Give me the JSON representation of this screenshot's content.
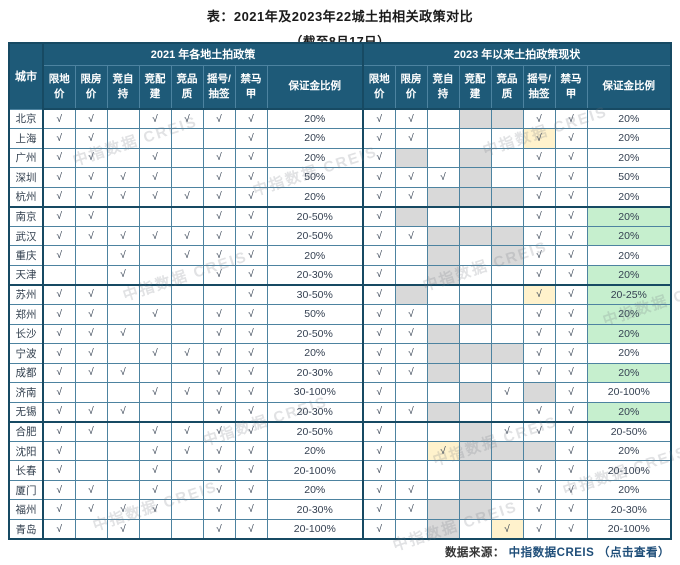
{
  "title": "表：2021年及2023年22城土拍相关政策对比",
  "subtitle": "（截至8月17日）",
  "watermark_text": "中指数据 CREIS",
  "colors": {
    "header_bg": "#1E5A78",
    "cancelled_gray": "#D9D9D9",
    "new_policy_yellow": "#FFF2CC",
    "lowered_deposit_green": "#C6EFCE",
    "grid_line": "#4D83A0",
    "frame": "#174A63",
    "link_blue": "#1F4E79"
  },
  "table": {
    "city_header": "城市",
    "groups": [
      {
        "label": "2021 年各地土拍政策"
      },
      {
        "label": "2023 年以来土拍政策现状"
      }
    ],
    "policy_columns": [
      {
        "line1": "限地",
        "line2": "价"
      },
      {
        "line1": "限房",
        "line2": "价"
      },
      {
        "line1": "竞自",
        "line2": "持"
      },
      {
        "line1": "竞配",
        "line2": "建"
      },
      {
        "line1": "竞品",
        "line2": "质"
      },
      {
        "line1": "摇号/",
        "line2": "抽签"
      },
      {
        "line1": "禁马",
        "line2": "甲"
      }
    ],
    "deposit_header": "保证金比例",
    "check_glyph": "√",
    "cell_legend": {
      "c": "policy-in-place",
      "g": "policy-cancelled",
      "y": "policy-newly-added",
      "": "no-policy"
    },
    "rows": [
      {
        "city": "北京",
        "p2021": [
          "c",
          "c",
          "",
          "c",
          "c",
          "c",
          "c"
        ],
        "d2021": "20%",
        "p2023": [
          "c",
          "c",
          "",
          "g",
          "g",
          "c",
          "c"
        ],
        "d2023": "20%",
        "d2023_green": false
      },
      {
        "city": "上海",
        "p2021": [
          "c",
          "c",
          "",
          "",
          "",
          "",
          "c"
        ],
        "d2021": "20%",
        "p2023": [
          "c",
          "c",
          "",
          "",
          "",
          "y",
          "c"
        ],
        "d2023": "20%",
        "d2023_green": false
      },
      {
        "city": "广州",
        "p2021": [
          "c",
          "c",
          "",
          "c",
          "",
          "c",
          "c"
        ],
        "d2021": "20%",
        "p2023": [
          "c",
          "g",
          "",
          "g",
          "",
          "c",
          "c"
        ],
        "d2023": "20%",
        "d2023_green": false
      },
      {
        "city": "深圳",
        "p2021": [
          "c",
          "c",
          "c",
          "c",
          "",
          "c",
          "c"
        ],
        "d2021": "50%",
        "p2023": [
          "c",
          "c",
          "c",
          "g",
          "",
          "c",
          "c"
        ],
        "d2023": "50%",
        "d2023_green": false
      },
      {
        "city": "杭州",
        "p2021": [
          "c",
          "c",
          "c",
          "c",
          "c",
          "c",
          "c"
        ],
        "d2021": "20%",
        "p2023": [
          "c",
          "c",
          "g",
          "g",
          "g",
          "c",
          "c"
        ],
        "d2023": "20%",
        "d2023_green": false
      },
      {
        "city": "南京",
        "p2021": [
          "c",
          "c",
          "",
          "",
          "",
          "c",
          "c"
        ],
        "d2021": "20-50%",
        "p2023": [
          "c",
          "g",
          "",
          "",
          "",
          "c",
          "c"
        ],
        "d2023": "20%",
        "d2023_green": true
      },
      {
        "city": "武汉",
        "p2021": [
          "c",
          "c",
          "c",
          "c",
          "c",
          "c",
          "c"
        ],
        "d2021": "20-50%",
        "p2023": [
          "c",
          "c",
          "g",
          "g",
          "g",
          "c",
          "c"
        ],
        "d2023": "20%",
        "d2023_green": true
      },
      {
        "city": "重庆",
        "p2021": [
          "c",
          "",
          "c",
          "",
          "c",
          "c",
          "c"
        ],
        "d2021": "20%",
        "p2023": [
          "c",
          "",
          "g",
          "",
          "g",
          "c",
          "c"
        ],
        "d2023": "20%",
        "d2023_green": false
      },
      {
        "city": "天津",
        "p2021": [
          "",
          "",
          "c",
          "",
          "",
          "c",
          "c"
        ],
        "d2021": "20-30%",
        "p2023": [
          "c",
          "",
          "g",
          "",
          "",
          "c",
          "c"
        ],
        "d2023": "20%",
        "d2023_green": true
      },
      {
        "city": "苏州",
        "p2021": [
          "c",
          "c",
          "",
          "",
          "",
          "",
          "c"
        ],
        "d2021": "30-50%",
        "p2023": [
          "c",
          "g",
          "",
          "",
          "",
          "y",
          "c"
        ],
        "d2023": "20-25%",
        "d2023_green": true
      },
      {
        "city": "郑州",
        "p2021": [
          "c",
          "c",
          "",
          "c",
          "",
          "c",
          "c"
        ],
        "d2021": "50%",
        "p2023": [
          "c",
          "c",
          "",
          "g",
          "",
          "c",
          "c"
        ],
        "d2023": "20%",
        "d2023_green": true
      },
      {
        "city": "长沙",
        "p2021": [
          "c",
          "c",
          "c",
          "",
          "",
          "c",
          "c"
        ],
        "d2021": "20-50%",
        "p2023": [
          "c",
          "c",
          "g",
          "",
          "",
          "c",
          "c"
        ],
        "d2023": "20%",
        "d2023_green": true
      },
      {
        "city": "宁波",
        "p2021": [
          "c",
          "c",
          "",
          "c",
          "c",
          "c",
          "c"
        ],
        "d2021": "20%",
        "p2023": [
          "c",
          "c",
          "g",
          "g",
          "g",
          "c",
          "c"
        ],
        "d2023": "20%",
        "d2023_green": false
      },
      {
        "city": "成都",
        "p2021": [
          "c",
          "c",
          "c",
          "",
          "",
          "c",
          "c"
        ],
        "d2021": "20-30%",
        "p2023": [
          "c",
          "c",
          "g",
          "",
          "",
          "c",
          "c"
        ],
        "d2023": "20%",
        "d2023_green": true
      },
      {
        "city": "济南",
        "p2021": [
          "c",
          "",
          "",
          "c",
          "c",
          "c",
          "c"
        ],
        "d2021": "30-100%",
        "p2023": [
          "c",
          "",
          "",
          "g",
          "c",
          "g",
          "c"
        ],
        "d2023": "20-100%",
        "d2023_green": false
      },
      {
        "city": "无锡",
        "p2021": [
          "c",
          "c",
          "c",
          "",
          "",
          "c",
          "c"
        ],
        "d2021": "20-30%",
        "p2023": [
          "c",
          "c",
          "g",
          "",
          "",
          "c",
          "c"
        ],
        "d2023": "20%",
        "d2023_green": true
      },
      {
        "city": "合肥",
        "p2021": [
          "c",
          "c",
          "",
          "c",
          "c",
          "c",
          "c"
        ],
        "d2021": "20-50%",
        "p2023": [
          "c",
          "",
          "",
          "g",
          "c",
          "c",
          "c"
        ],
        "d2023": "20-50%",
        "d2023_green": false
      },
      {
        "city": "沈阳",
        "p2021": [
          "c",
          "",
          "",
          "c",
          "c",
          "c",
          "c"
        ],
        "d2021": "20%",
        "p2023": [
          "c",
          "",
          "y",
          "g",
          "g",
          "g",
          "c"
        ],
        "d2023": "20%",
        "d2023_green": false
      },
      {
        "city": "长春",
        "p2021": [
          "c",
          "",
          "",
          "c",
          "",
          "c",
          "c"
        ],
        "d2021": "20-100%",
        "p2023": [
          "c",
          "",
          "",
          "g",
          "",
          "c",
          "c"
        ],
        "d2023": "20-100%",
        "d2023_green": false
      },
      {
        "city": "厦门",
        "p2021": [
          "c",
          "c",
          "",
          "c",
          "",
          "c",
          "c"
        ],
        "d2021": "20%",
        "p2023": [
          "c",
          "c",
          "",
          "g",
          "",
          "c",
          "c"
        ],
        "d2023": "20%",
        "d2023_green": false
      },
      {
        "city": "福州",
        "p2021": [
          "c",
          "c",
          "c",
          "c",
          "",
          "c",
          "c"
        ],
        "d2021": "20-30%",
        "p2023": [
          "c",
          "c",
          "g",
          "g",
          "",
          "c",
          "c"
        ],
        "d2023": "20-30%",
        "d2023_green": false
      },
      {
        "city": "青岛",
        "p2021": [
          "c",
          "",
          "c",
          "",
          "",
          "c",
          "c"
        ],
        "d2021": "20-100%",
        "p2023": [
          "c",
          "",
          "g",
          "",
          "y",
          "c",
          "c"
        ],
        "d2023": "20-100%",
        "d2023_green": false
      }
    ],
    "group_separator_after_rows": [
      4,
      8,
      15
    ]
  },
  "footer": {
    "label": "数据来源：",
    "source": "中指数据CREIS",
    "action": "（点击查看）"
  }
}
